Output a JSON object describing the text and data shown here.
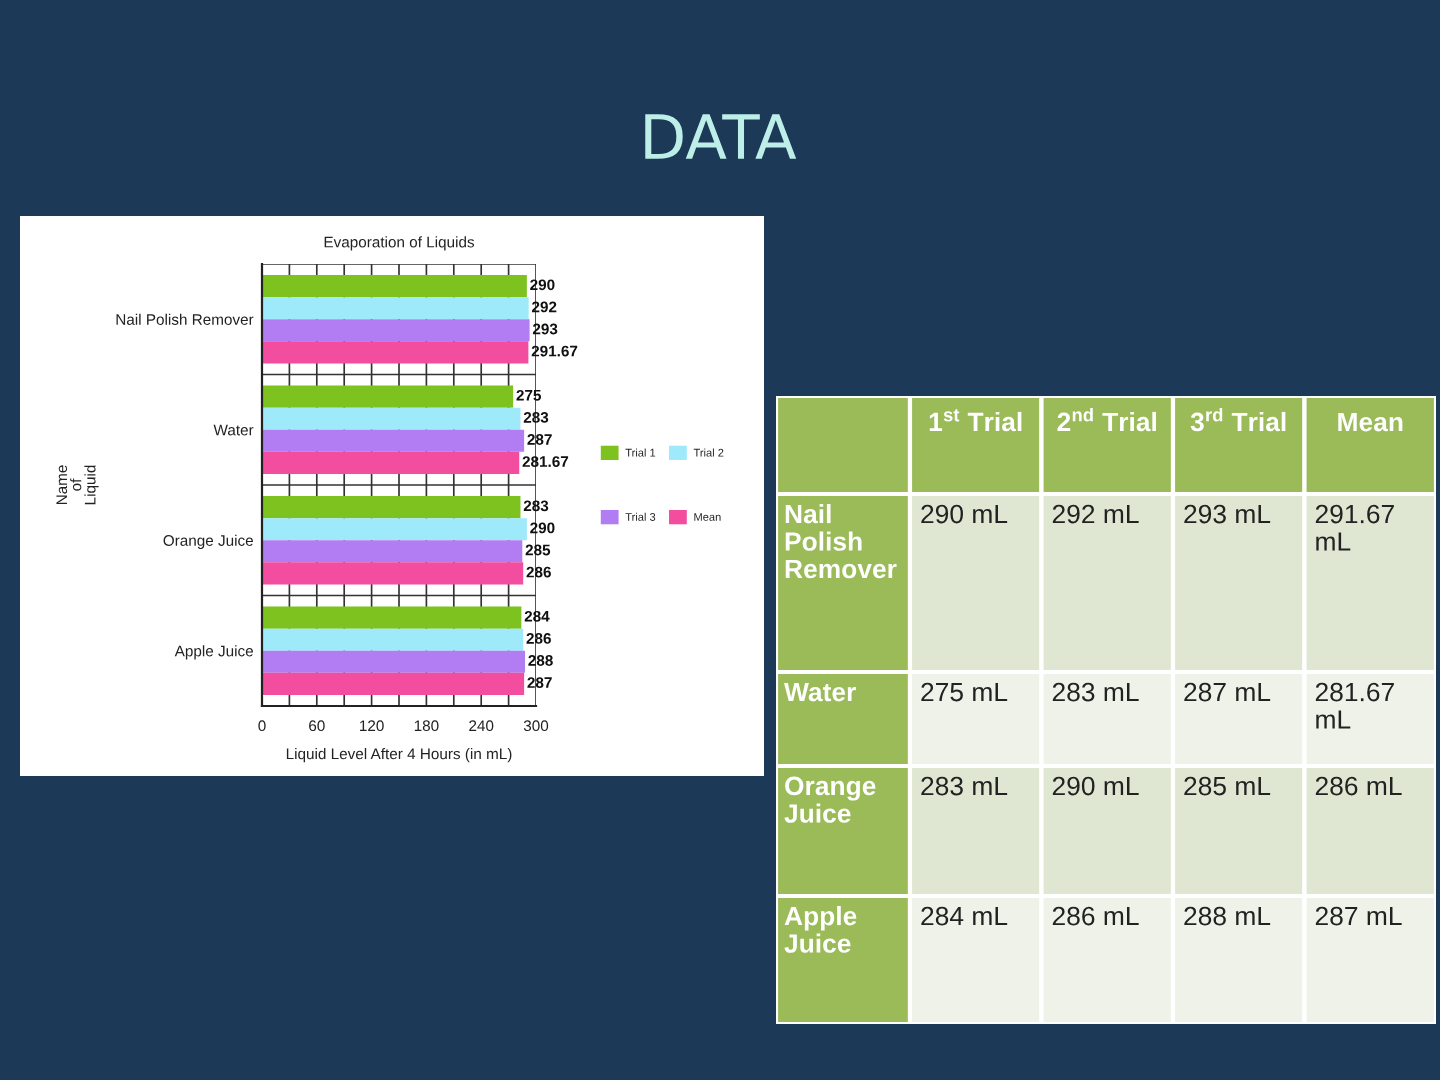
{
  "chart_data": [
    {
      "type": "bar",
      "orientation": "horizontal",
      "title": "Evaporation of Liquids",
      "xlabel": "Liquid Level After 4 Hours (in mL)",
      "ylabel": "Name\nof\nLiquid",
      "categories": [
        "Nail Polish Remover",
        "Water",
        "Orange Juice",
        "Apple Juice"
      ],
      "series": [
        {
          "name": "Trial 1",
          "color": "#7dc21e",
          "values": [
            290,
            275,
            283,
            284
          ]
        },
        {
          "name": "Trial 2",
          "color": "#9ee9fa",
          "values": [
            292,
            283,
            290,
            286
          ]
        },
        {
          "name": "Trial 3",
          "color": "#b27cf2",
          "values": [
            293,
            287,
            285,
            288
          ]
        },
        {
          "name": "Mean",
          "color": "#f24d9e",
          "values": [
            291.67,
            281.67,
            286,
            287
          ]
        }
      ],
      "xlim": [
        0,
        300
      ],
      "xticks": [
        0,
        {
          "value": 30,
          "label": null
        },
        60,
        {
          "value": 90,
          "label": null
        },
        120,
        {
          "value": 150,
          "label": null
        },
        180,
        {
          "value": 210,
          "label": null
        },
        240,
        {
          "value": 270,
          "label": null
        },
        300
      ],
      "grid": true,
      "legend": "right",
      "data_labels": true
    },
    {
      "type": "other",
      "title": "DATA",
      "annotations": [
        "1$^{st}$ Trial",
        "2$^{nd}$ Trial",
        "3$^{rd}$ Trial",
        "Mean",
        "Nail Polish Remover",
        "290 mL",
        "292 mL",
        "293 mL",
        "291.67 mL",
        "Water",
        "275 mL",
        "283 mL",
        "287 mL",
        "281.67 mL",
        "Orange Juice",
        "283 mL",
        "290 mL",
        "285 mL",
        "286 mL",
        "Apple Juice",
        "284 mL",
        "286 mL",
        "288 mL",
        "287 mL"
      ]
    }
  ]
}
